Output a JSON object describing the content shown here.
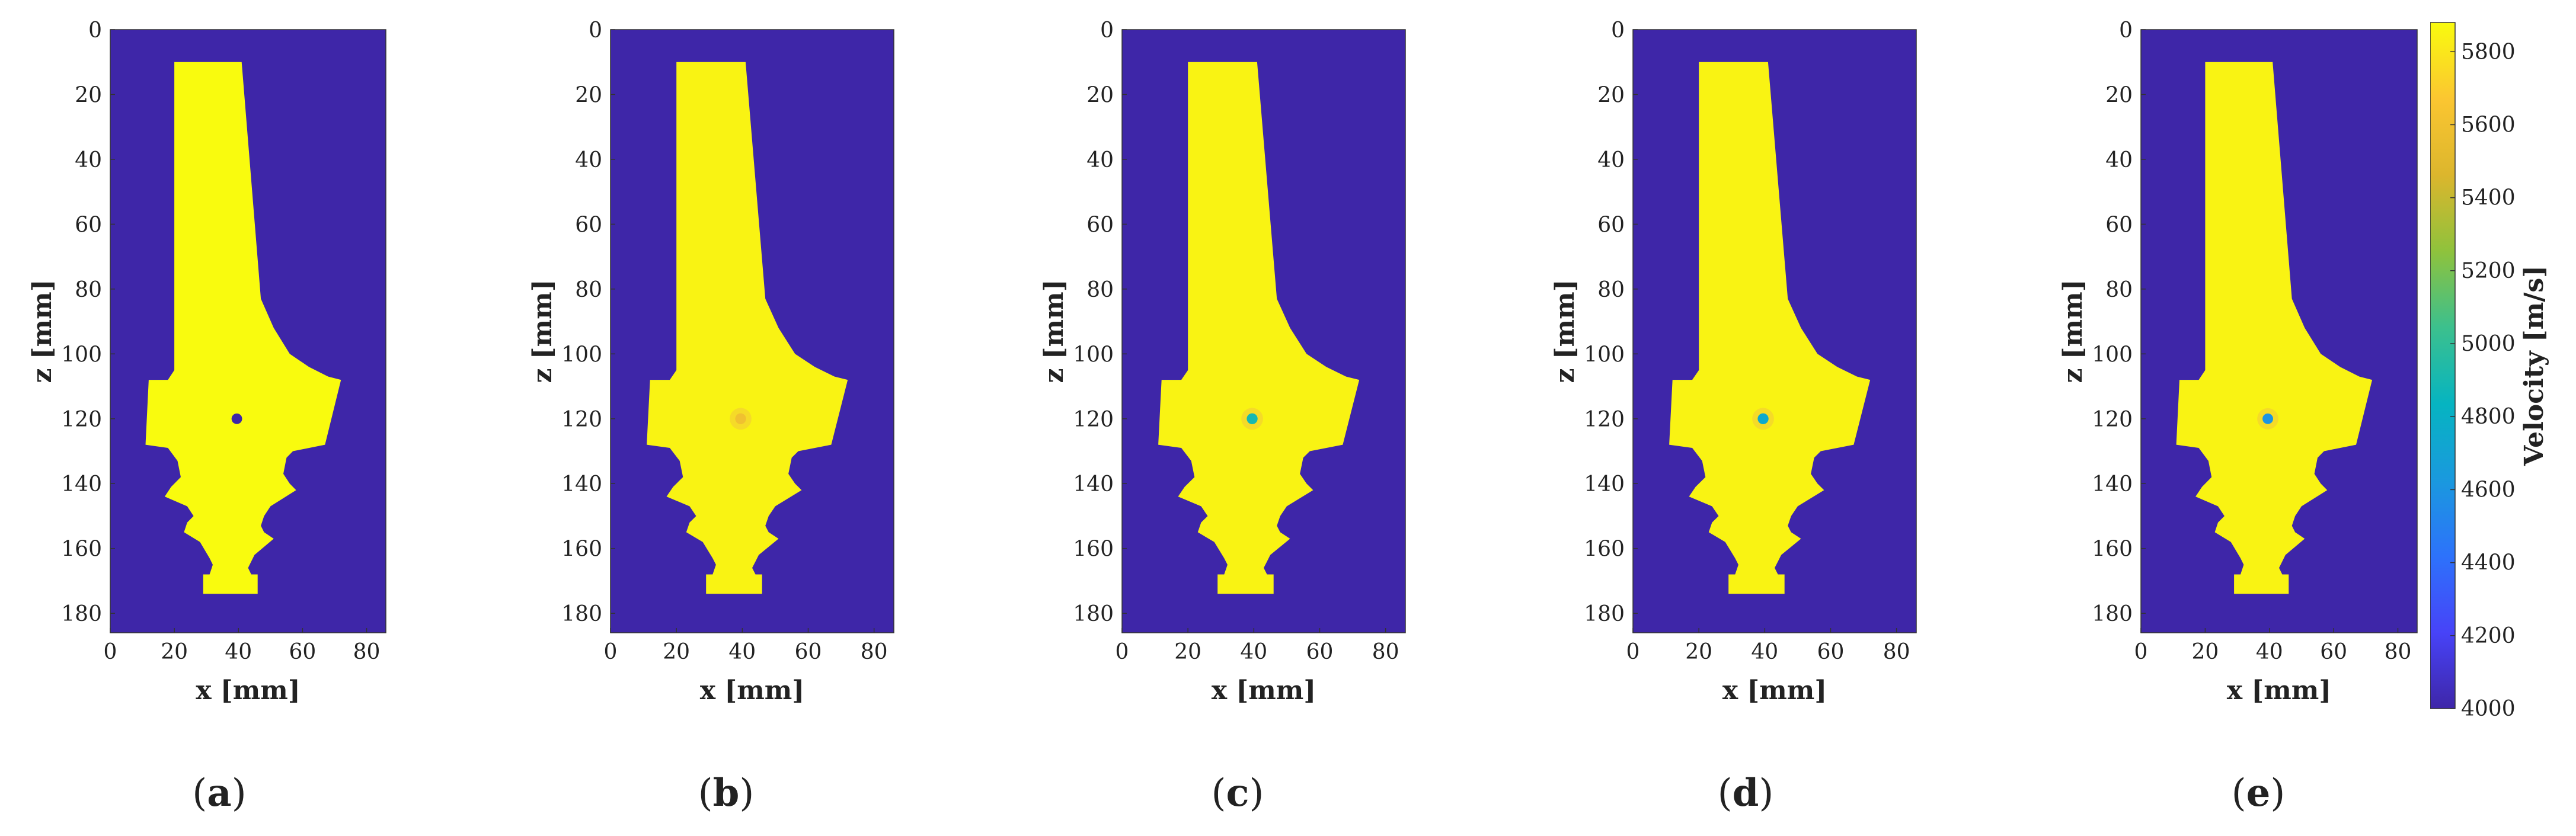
{
  "chart_data": [
    {
      "type": "heatmap",
      "panel_label": "a",
      "variant": "ground_truth",
      "xlabel": "x [mm]",
      "ylabel": "z [mm]",
      "xlim": [
        0,
        86
      ],
      "ylim": [
        0,
        186
      ],
      "y_direction": "down",
      "x_ticks": [
        0,
        20,
        40,
        60,
        80
      ],
      "y_ticks": [
        0,
        20,
        40,
        60,
        80,
        100,
        120,
        140,
        160,
        180
      ],
      "background_velocity": 4000,
      "object_velocity": 5900,
      "inclusion": {
        "x": 39.5,
        "z": 120,
        "diameter_mm": 3,
        "velocity": 4000
      },
      "object_outline": [
        [
          20,
          10
        ],
        [
          41,
          10
        ],
        [
          47,
          83
        ],
        [
          51,
          92
        ],
        [
          56,
          100
        ],
        [
          62,
          104
        ],
        [
          68,
          107
        ],
        [
          72,
          108
        ],
        [
          67,
          128
        ],
        [
          57,
          130
        ],
        [
          55,
          132
        ],
        [
          54,
          137
        ],
        [
          56,
          140
        ],
        [
          58,
          142
        ],
        [
          50,
          147
        ],
        [
          48,
          150
        ],
        [
          47,
          153
        ],
        [
          48,
          155
        ],
        [
          51,
          157
        ],
        [
          45,
          162
        ],
        [
          44,
          164
        ],
        [
          43,
          166
        ],
        [
          44,
          168
        ],
        [
          46,
          168
        ],
        [
          46,
          174
        ],
        [
          29,
          174
        ],
        [
          29,
          168
        ],
        [
          31,
          168
        ],
        [
          32,
          165
        ],
        [
          31,
          163
        ],
        [
          28,
          158
        ],
        [
          23,
          155
        ],
        [
          24,
          152
        ],
        [
          26,
          150
        ],
        [
          24,
          147
        ],
        [
          17,
          144
        ],
        [
          19,
          141
        ],
        [
          22,
          138
        ],
        [
          21,
          133
        ],
        [
          18,
          129
        ],
        [
          11,
          128
        ],
        [
          12,
          108
        ],
        [
          18,
          108
        ],
        [
          20,
          105
        ]
      ]
    },
    {
      "type": "heatmap",
      "panel_label": "b",
      "variant": "reconstruction",
      "xlabel": "x [mm]",
      "ylabel": "z [mm]",
      "xlim": [
        0,
        86
      ],
      "ylim": [
        0,
        186
      ],
      "y_direction": "down",
      "x_ticks": [
        0,
        20,
        40,
        60,
        80
      ],
      "y_ticks": [
        0,
        20,
        40,
        60,
        80,
        100,
        120,
        140,
        160,
        180
      ],
      "background_velocity": 4000,
      "object_velocity": 5850,
      "inclusion": {
        "x": 39.5,
        "z": 120,
        "diameter_mm": 3,
        "velocity": 5600
      },
      "object_outline": [
        [
          20,
          10
        ],
        [
          41,
          10
        ],
        [
          47,
          83
        ],
        [
          51,
          92
        ],
        [
          56,
          100
        ],
        [
          62,
          104
        ],
        [
          68,
          107
        ],
        [
          72,
          108
        ],
        [
          67,
          128
        ],
        [
          57,
          130
        ],
        [
          55,
          132
        ],
        [
          54,
          137
        ],
        [
          56,
          140
        ],
        [
          58,
          142
        ],
        [
          50,
          147
        ],
        [
          48,
          150
        ],
        [
          47,
          153
        ],
        [
          48,
          155
        ],
        [
          51,
          157
        ],
        [
          45,
          162
        ],
        [
          44,
          164
        ],
        [
          43,
          166
        ],
        [
          44,
          168
        ],
        [
          46,
          168
        ],
        [
          46,
          174
        ],
        [
          29,
          174
        ],
        [
          29,
          168
        ],
        [
          31,
          168
        ],
        [
          32,
          165
        ],
        [
          31,
          163
        ],
        [
          28,
          158
        ],
        [
          23,
          155
        ],
        [
          24,
          152
        ],
        [
          26,
          150
        ],
        [
          24,
          147
        ],
        [
          17,
          144
        ],
        [
          19,
          141
        ],
        [
          22,
          138
        ],
        [
          21,
          133
        ],
        [
          18,
          129
        ],
        [
          11,
          128
        ],
        [
          12,
          108
        ],
        [
          18,
          108
        ],
        [
          20,
          105
        ]
      ]
    },
    {
      "type": "heatmap",
      "panel_label": "c",
      "variant": "reconstruction",
      "xlabel": "x [mm]",
      "ylabel": "z [mm]",
      "xlim": [
        0,
        86
      ],
      "ylim": [
        0,
        186
      ],
      "y_direction": "down",
      "x_ticks": [
        0,
        20,
        40,
        60,
        80
      ],
      "y_ticks": [
        0,
        20,
        40,
        60,
        80,
        100,
        120,
        140,
        160,
        180
      ],
      "background_velocity": 4000,
      "object_velocity": 5850,
      "inclusion": {
        "x": 39.5,
        "z": 120,
        "diameter_mm": 3,
        "velocity": 4900
      },
      "object_outline": [
        [
          20,
          10
        ],
        [
          41,
          10
        ],
        [
          47,
          83
        ],
        [
          51,
          92
        ],
        [
          56,
          100
        ],
        [
          62,
          104
        ],
        [
          68,
          107
        ],
        [
          72,
          108
        ],
        [
          67,
          128
        ],
        [
          57,
          130
        ],
        [
          55,
          132
        ],
        [
          54,
          137
        ],
        [
          56,
          140
        ],
        [
          58,
          142
        ],
        [
          50,
          147
        ],
        [
          48,
          150
        ],
        [
          47,
          153
        ],
        [
          48,
          155
        ],
        [
          51,
          157
        ],
        [
          45,
          162
        ],
        [
          44,
          164
        ],
        [
          43,
          166
        ],
        [
          44,
          168
        ],
        [
          46,
          168
        ],
        [
          46,
          174
        ],
        [
          29,
          174
        ],
        [
          29,
          168
        ],
        [
          31,
          168
        ],
        [
          32,
          165
        ],
        [
          31,
          163
        ],
        [
          28,
          158
        ],
        [
          23,
          155
        ],
        [
          24,
          152
        ],
        [
          26,
          150
        ],
        [
          24,
          147
        ],
        [
          17,
          144
        ],
        [
          19,
          141
        ],
        [
          22,
          138
        ],
        [
          21,
          133
        ],
        [
          18,
          129
        ],
        [
          11,
          128
        ],
        [
          12,
          108
        ],
        [
          18,
          108
        ],
        [
          20,
          105
        ]
      ]
    },
    {
      "type": "heatmap",
      "panel_label": "d",
      "variant": "reconstruction",
      "xlabel": "x [mm]",
      "ylabel": "z [mm]",
      "xlim": [
        0,
        86
      ],
      "ylim": [
        0,
        186
      ],
      "y_direction": "down",
      "x_ticks": [
        0,
        20,
        40,
        60,
        80
      ],
      "y_ticks": [
        0,
        20,
        40,
        60,
        80,
        100,
        120,
        140,
        160,
        180
      ],
      "background_velocity": 4000,
      "object_velocity": 5850,
      "inclusion": {
        "x": 39.5,
        "z": 120,
        "diameter_mm": 3,
        "velocity": 4750
      },
      "object_outline": [
        [
          20,
          10
        ],
        [
          41,
          10
        ],
        [
          47,
          83
        ],
        [
          51,
          92
        ],
        [
          56,
          100
        ],
        [
          62,
          104
        ],
        [
          68,
          107
        ],
        [
          72,
          108
        ],
        [
          67,
          128
        ],
        [
          57,
          130
        ],
        [
          55,
          132
        ],
        [
          54,
          137
        ],
        [
          56,
          140
        ],
        [
          58,
          142
        ],
        [
          50,
          147
        ],
        [
          48,
          150
        ],
        [
          47,
          153
        ],
        [
          48,
          155
        ],
        [
          51,
          157
        ],
        [
          45,
          162
        ],
        [
          44,
          164
        ],
        [
          43,
          166
        ],
        [
          44,
          168
        ],
        [
          46,
          168
        ],
        [
          46,
          174
        ],
        [
          29,
          174
        ],
        [
          29,
          168
        ],
        [
          31,
          168
        ],
        [
          32,
          165
        ],
        [
          31,
          163
        ],
        [
          28,
          158
        ],
        [
          23,
          155
        ],
        [
          24,
          152
        ],
        [
          26,
          150
        ],
        [
          24,
          147
        ],
        [
          17,
          144
        ],
        [
          19,
          141
        ],
        [
          22,
          138
        ],
        [
          21,
          133
        ],
        [
          18,
          129
        ],
        [
          11,
          128
        ],
        [
          12,
          108
        ],
        [
          18,
          108
        ],
        [
          20,
          105
        ]
      ]
    },
    {
      "type": "heatmap",
      "panel_label": "e",
      "variant": "reconstruction",
      "xlabel": "x [mm]",
      "ylabel": "z [mm]",
      "xlim": [
        0,
        86
      ],
      "ylim": [
        0,
        186
      ],
      "y_direction": "down",
      "x_ticks": [
        0,
        20,
        40,
        60,
        80
      ],
      "y_ticks": [
        0,
        20,
        40,
        60,
        80,
        100,
        120,
        140,
        160,
        180
      ],
      "background_velocity": 4000,
      "object_velocity": 5850,
      "inclusion": {
        "x": 39.5,
        "z": 120,
        "diameter_mm": 3,
        "velocity": 4600
      },
      "object_outline": [
        [
          20,
          10
        ],
        [
          41,
          10
        ],
        [
          47,
          83
        ],
        [
          51,
          92
        ],
        [
          56,
          100
        ],
        [
          62,
          104
        ],
        [
          68,
          107
        ],
        [
          72,
          108
        ],
        [
          67,
          128
        ],
        [
          57,
          130
        ],
        [
          55,
          132
        ],
        [
          54,
          137
        ],
        [
          56,
          140
        ],
        [
          58,
          142
        ],
        [
          50,
          147
        ],
        [
          48,
          150
        ],
        [
          47,
          153
        ],
        [
          48,
          155
        ],
        [
          51,
          157
        ],
        [
          45,
          162
        ],
        [
          44,
          164
        ],
        [
          43,
          166
        ],
        [
          44,
          168
        ],
        [
          46,
          168
        ],
        [
          46,
          174
        ],
        [
          29,
          174
        ],
        [
          29,
          168
        ],
        [
          31,
          168
        ],
        [
          32,
          165
        ],
        [
          31,
          163
        ],
        [
          28,
          158
        ],
        [
          23,
          155
        ],
        [
          24,
          152
        ],
        [
          26,
          150
        ],
        [
          24,
          147
        ],
        [
          17,
          144
        ],
        [
          19,
          141
        ],
        [
          22,
          138
        ],
        [
          21,
          133
        ],
        [
          18,
          129
        ],
        [
          11,
          128
        ],
        [
          12,
          108
        ],
        [
          18,
          108
        ],
        [
          20,
          105
        ]
      ]
    }
  ],
  "colorbar": {
    "label": "Velocity [m/s]",
    "min": 4000,
    "max": 5880,
    "ticks": [
      4000,
      4200,
      4400,
      4600,
      4800,
      5000,
      5200,
      5400,
      5600,
      5800
    ],
    "colormap": "parula",
    "stops": [
      "#3e26a8",
      "#4743f8",
      "#2d72fb",
      "#1a99de",
      "#06b4c1",
      "#3cc08d",
      "#8fc23c",
      "#dcb62d",
      "#fbc631",
      "#f9fb0e"
    ]
  },
  "colors": {
    "background_field": "#3c2aa6",
    "object_field": "#f7f51a",
    "inclusion_ground_truth": "#3c2aa6"
  }
}
